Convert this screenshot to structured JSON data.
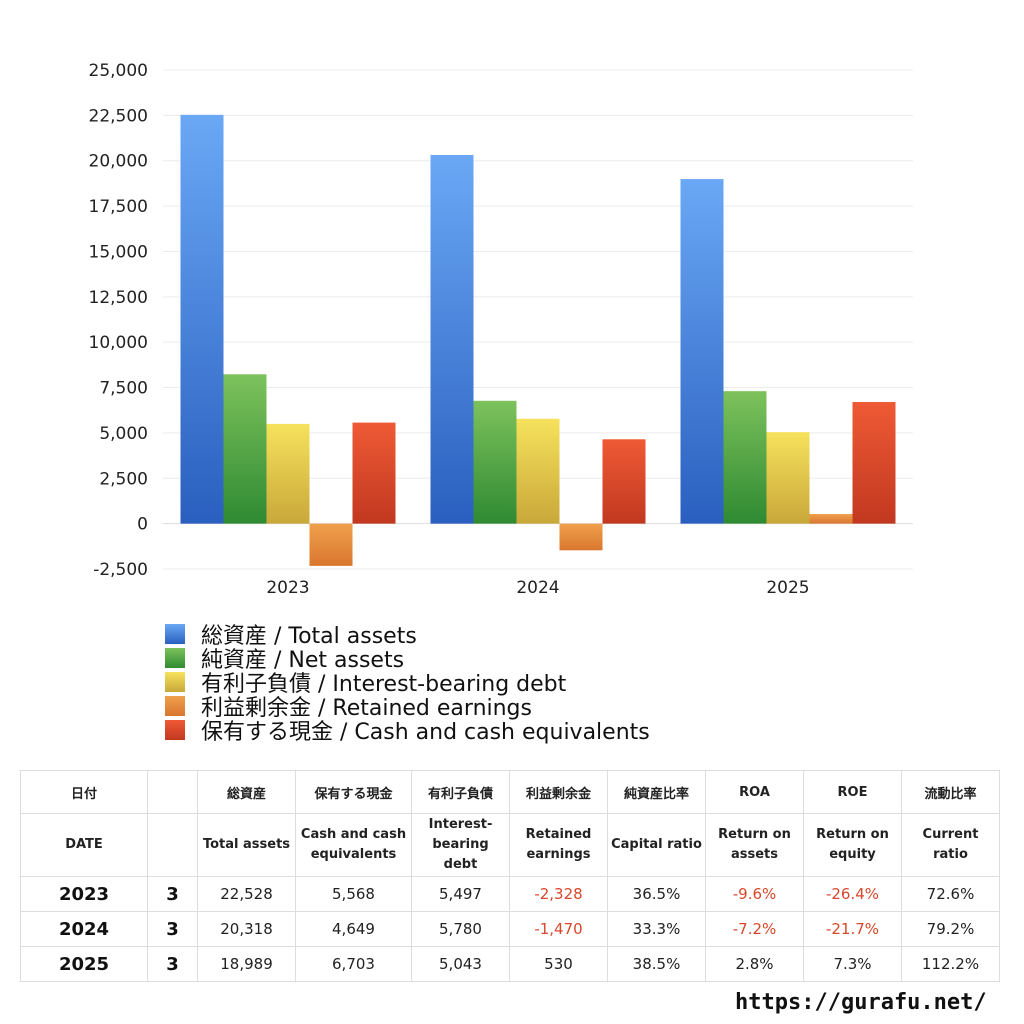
{
  "chart_data": {
    "type": "bar",
    "categories": [
      "2023",
      "2024",
      "2025"
    ],
    "series": [
      {
        "name": "総資産 / Total assets",
        "values": [
          22528,
          20318,
          18989
        ],
        "color_top": "#6aa8f5",
        "color_bottom": "#2a5fbf"
      },
      {
        "name": "純資産 / Net assets",
        "values": [
          8230,
          6770,
          7300
        ],
        "color_top": "#7dc25c",
        "color_bottom": "#2f8a32"
      },
      {
        "name": "有利子負債 / Interest-bearing debt",
        "values": [
          5497,
          5780,
          5043
        ],
        "color_top": "#f6e25c",
        "color_bottom": "#c9a83a"
      },
      {
        "name": "利益剰余金 / Retained earnings",
        "values": [
          -2328,
          -1470,
          530
        ],
        "color_top": "#f0a04c",
        "color_bottom": "#d9772f"
      },
      {
        "name": "保有する現金 /  Cash and cash equivalents",
        "values": [
          5568,
          4649,
          6703
        ],
        "color_top": "#ef5a35",
        "color_bottom": "#c13820"
      }
    ],
    "y_ticks": [
      "25,000",
      "22,500",
      "20,000",
      "17,500",
      "15,000",
      "12,500",
      "10,000",
      "7,500",
      "5,000",
      "2,500",
      "0",
      "-2,500"
    ],
    "ylim": [
      -2500,
      25000
    ],
    "grid": true,
    "legend_position": "bottom-left"
  },
  "table": {
    "header_jp": [
      "日付",
      "",
      "総資産",
      "保有する現金",
      "有利子負債",
      "利益剰余金",
      "純資産比率",
      "ROA",
      "ROE",
      "流動比率"
    ],
    "header_en": [
      [
        "DATE"
      ],
      [
        ""
      ],
      [
        "Total assets"
      ],
      [
        "Cash and cash",
        "equivalents"
      ],
      [
        "Interest-",
        "bearing",
        "debt"
      ],
      [
        "Retained",
        "earnings"
      ],
      [
        "Capital ratio"
      ],
      [
        "Return on",
        "assets"
      ],
      [
        "Return on",
        "equity"
      ],
      [
        "Current",
        "ratio"
      ]
    ],
    "rows": [
      [
        "2023",
        "3",
        "22,528",
        "5,568",
        "5,497",
        "-2,328",
        "36.5%",
        "-9.6%",
        "-26.4%",
        "72.6%"
      ],
      [
        "2024",
        "3",
        "20,318",
        "4,649",
        "5,780",
        "-1,470",
        "33.3%",
        "-7.2%",
        "-21.7%",
        "79.2%"
      ],
      [
        "2025",
        "3",
        "18,989",
        "6,703",
        "5,043",
        "530",
        "38.5%",
        "2.8%",
        "7.3%",
        "112.2%"
      ]
    ]
  },
  "footer": {
    "url": "https://gurafu.net/"
  }
}
